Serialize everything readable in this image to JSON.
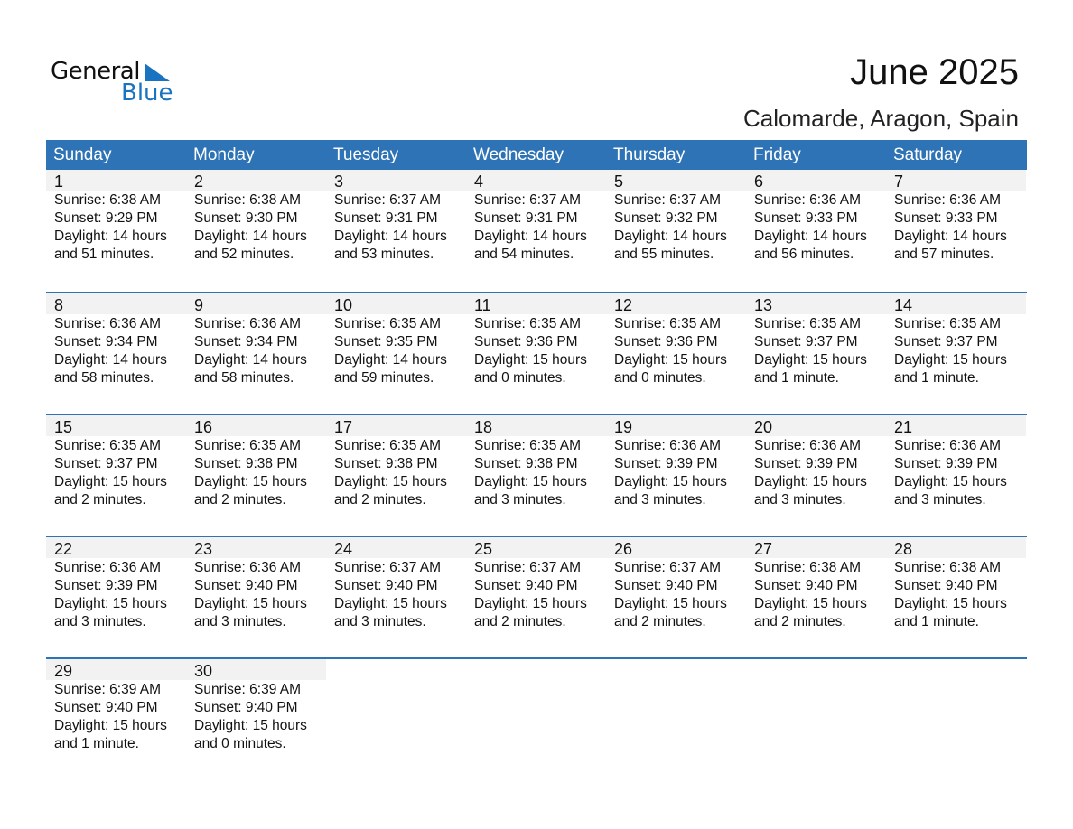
{
  "logo": {
    "word1": "General",
    "word2": "Blue"
  },
  "title": "June 2025",
  "subtitle": "Calomarde, Aragon, Spain",
  "days_of_week": [
    "Sunday",
    "Monday",
    "Tuesday",
    "Wednesday",
    "Thursday",
    "Friday",
    "Saturday"
  ],
  "colors": {
    "accent": "#2e73b5",
    "day_band": "#f2f2f2",
    "logo_blue": "#1a73c0"
  },
  "weeks": [
    [
      {
        "day": "1",
        "sunrise": "Sunrise: 6:38 AM",
        "sunset": "Sunset: 9:29 PM",
        "daylight": "Daylight: 14 hours",
        "minutes": "and 51 minutes."
      },
      {
        "day": "2",
        "sunrise": "Sunrise: 6:38 AM",
        "sunset": "Sunset: 9:30 PM",
        "daylight": "Daylight: 14 hours",
        "minutes": "and 52 minutes."
      },
      {
        "day": "3",
        "sunrise": "Sunrise: 6:37 AM",
        "sunset": "Sunset: 9:31 PM",
        "daylight": "Daylight: 14 hours",
        "minutes": "and 53 minutes."
      },
      {
        "day": "4",
        "sunrise": "Sunrise: 6:37 AM",
        "sunset": "Sunset: 9:31 PM",
        "daylight": "Daylight: 14 hours",
        "minutes": "and 54 minutes."
      },
      {
        "day": "5",
        "sunrise": "Sunrise: 6:37 AM",
        "sunset": "Sunset: 9:32 PM",
        "daylight": "Daylight: 14 hours",
        "minutes": "and 55 minutes."
      },
      {
        "day": "6",
        "sunrise": "Sunrise: 6:36 AM",
        "sunset": "Sunset: 9:33 PM",
        "daylight": "Daylight: 14 hours",
        "minutes": "and 56 minutes."
      },
      {
        "day": "7",
        "sunrise": "Sunrise: 6:36 AM",
        "sunset": "Sunset: 9:33 PM",
        "daylight": "Daylight: 14 hours",
        "minutes": "and 57 minutes."
      }
    ],
    [
      {
        "day": "8",
        "sunrise": "Sunrise: 6:36 AM",
        "sunset": "Sunset: 9:34 PM",
        "daylight": "Daylight: 14 hours",
        "minutes": "and 58 minutes."
      },
      {
        "day": "9",
        "sunrise": "Sunrise: 6:36 AM",
        "sunset": "Sunset: 9:34 PM",
        "daylight": "Daylight: 14 hours",
        "minutes": "and 58 minutes."
      },
      {
        "day": "10",
        "sunrise": "Sunrise: 6:35 AM",
        "sunset": "Sunset: 9:35 PM",
        "daylight": "Daylight: 14 hours",
        "minutes": "and 59 minutes."
      },
      {
        "day": "11",
        "sunrise": "Sunrise: 6:35 AM",
        "sunset": "Sunset: 9:36 PM",
        "daylight": "Daylight: 15 hours",
        "minutes": "and 0 minutes."
      },
      {
        "day": "12",
        "sunrise": "Sunrise: 6:35 AM",
        "sunset": "Sunset: 9:36 PM",
        "daylight": "Daylight: 15 hours",
        "minutes": "and 0 minutes."
      },
      {
        "day": "13",
        "sunrise": "Sunrise: 6:35 AM",
        "sunset": "Sunset: 9:37 PM",
        "daylight": "Daylight: 15 hours",
        "minutes": "and 1 minute."
      },
      {
        "day": "14",
        "sunrise": "Sunrise: 6:35 AM",
        "sunset": "Sunset: 9:37 PM",
        "daylight": "Daylight: 15 hours",
        "minutes": "and 1 minute."
      }
    ],
    [
      {
        "day": "15",
        "sunrise": "Sunrise: 6:35 AM",
        "sunset": "Sunset: 9:37 PM",
        "daylight": "Daylight: 15 hours",
        "minutes": "and 2 minutes."
      },
      {
        "day": "16",
        "sunrise": "Sunrise: 6:35 AM",
        "sunset": "Sunset: 9:38 PM",
        "daylight": "Daylight: 15 hours",
        "minutes": "and 2 minutes."
      },
      {
        "day": "17",
        "sunrise": "Sunrise: 6:35 AM",
        "sunset": "Sunset: 9:38 PM",
        "daylight": "Daylight: 15 hours",
        "minutes": "and 2 minutes."
      },
      {
        "day": "18",
        "sunrise": "Sunrise: 6:35 AM",
        "sunset": "Sunset: 9:38 PM",
        "daylight": "Daylight: 15 hours",
        "minutes": "and 3 minutes."
      },
      {
        "day": "19",
        "sunrise": "Sunrise: 6:36 AM",
        "sunset": "Sunset: 9:39 PM",
        "daylight": "Daylight: 15 hours",
        "minutes": "and 3 minutes."
      },
      {
        "day": "20",
        "sunrise": "Sunrise: 6:36 AM",
        "sunset": "Sunset: 9:39 PM",
        "daylight": "Daylight: 15 hours",
        "minutes": "and 3 minutes."
      },
      {
        "day": "21",
        "sunrise": "Sunrise: 6:36 AM",
        "sunset": "Sunset: 9:39 PM",
        "daylight": "Daylight: 15 hours",
        "minutes": "and 3 minutes."
      }
    ],
    [
      {
        "day": "22",
        "sunrise": "Sunrise: 6:36 AM",
        "sunset": "Sunset: 9:39 PM",
        "daylight": "Daylight: 15 hours",
        "minutes": "and 3 minutes."
      },
      {
        "day": "23",
        "sunrise": "Sunrise: 6:36 AM",
        "sunset": "Sunset: 9:40 PM",
        "daylight": "Daylight: 15 hours",
        "minutes": "and 3 minutes."
      },
      {
        "day": "24",
        "sunrise": "Sunrise: 6:37 AM",
        "sunset": "Sunset: 9:40 PM",
        "daylight": "Daylight: 15 hours",
        "minutes": "and 3 minutes."
      },
      {
        "day": "25",
        "sunrise": "Sunrise: 6:37 AM",
        "sunset": "Sunset: 9:40 PM",
        "daylight": "Daylight: 15 hours",
        "minutes": "and 2 minutes."
      },
      {
        "day": "26",
        "sunrise": "Sunrise: 6:37 AM",
        "sunset": "Sunset: 9:40 PM",
        "daylight": "Daylight: 15 hours",
        "minutes": "and 2 minutes."
      },
      {
        "day": "27",
        "sunrise": "Sunrise: 6:38 AM",
        "sunset": "Sunset: 9:40 PM",
        "daylight": "Daylight: 15 hours",
        "minutes": "and 2 minutes."
      },
      {
        "day": "28",
        "sunrise": "Sunrise: 6:38 AM",
        "sunset": "Sunset: 9:40 PM",
        "daylight": "Daylight: 15 hours",
        "minutes": "and 1 minute."
      }
    ],
    [
      {
        "day": "29",
        "sunrise": "Sunrise: 6:39 AM",
        "sunset": "Sunset: 9:40 PM",
        "daylight": "Daylight: 15 hours",
        "minutes": "and 1 minute."
      },
      {
        "day": "30",
        "sunrise": "Sunrise: 6:39 AM",
        "sunset": "Sunset: 9:40 PM",
        "daylight": "Daylight: 15 hours",
        "minutes": "and 0 minutes."
      },
      null,
      null,
      null,
      null,
      null
    ]
  ]
}
